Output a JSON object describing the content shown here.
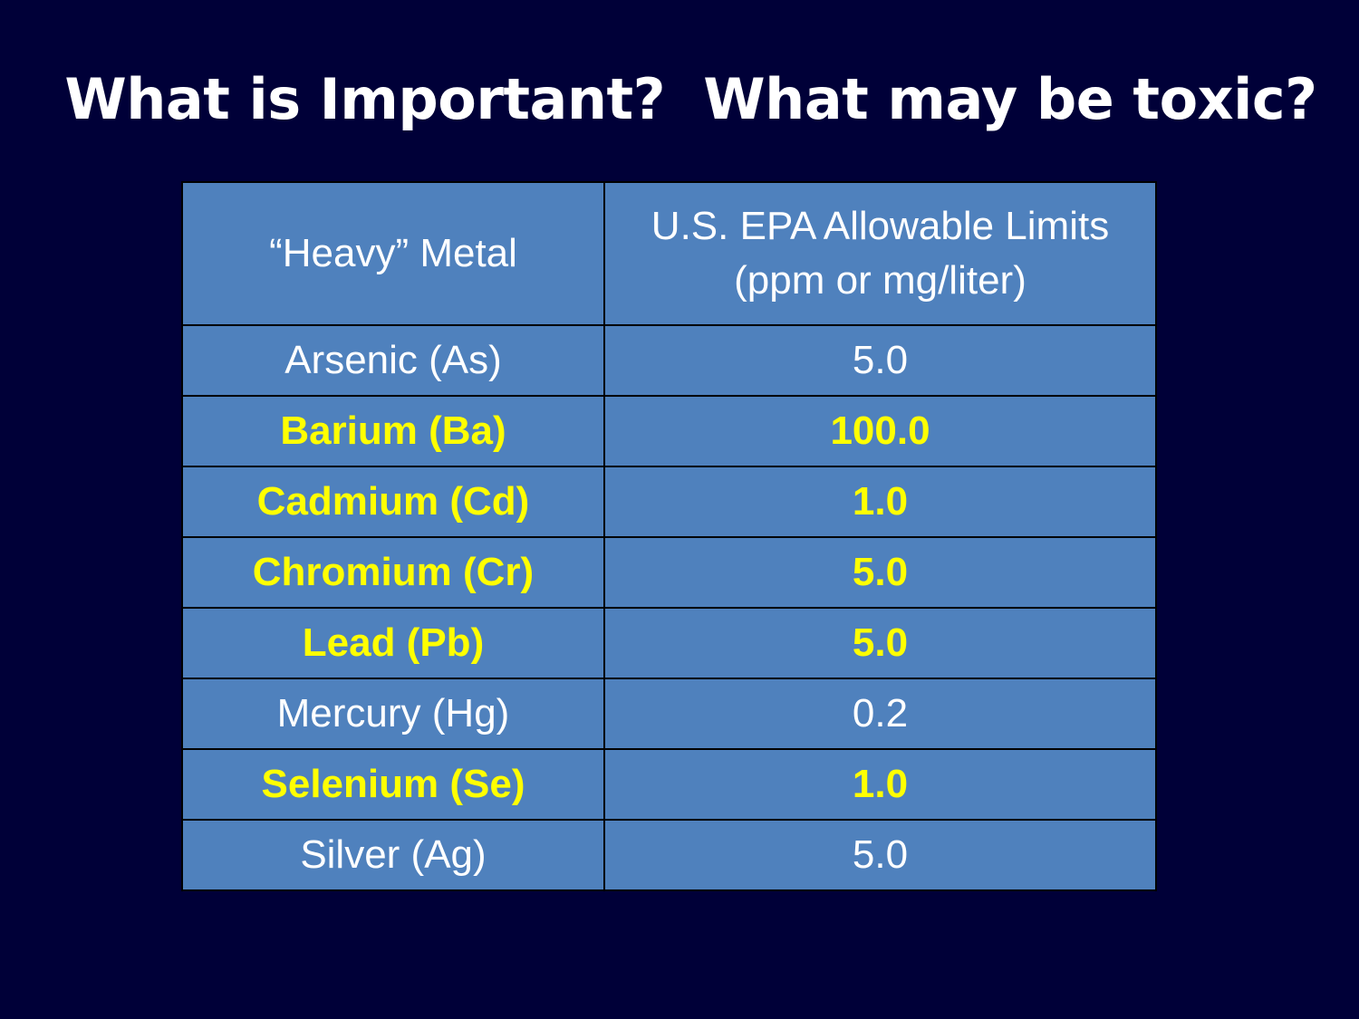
{
  "slide": {
    "title": "What is Important?  What may be toxic?"
  },
  "table": {
    "headers": {
      "metal": "“Heavy” Metal",
      "limit_line1": "U.S. EPA Allowable Limits",
      "limit_line2": "(ppm or mg/liter)"
    },
    "rows": [
      {
        "metal": "Arsenic (As)",
        "limit": "5.0",
        "highlighted": false
      },
      {
        "metal": "Barium (Ba)",
        "limit": "100.0",
        "highlighted": true
      },
      {
        "metal": "Cadmium (Cd)",
        "limit": "1.0",
        "highlighted": true
      },
      {
        "metal": "Chromium (Cr)",
        "limit": "5.0",
        "highlighted": true
      },
      {
        "metal": "Lead (Pb)",
        "limit": "5.0",
        "highlighted": true
      },
      {
        "metal": "Mercury (Hg)",
        "limit": "0.2",
        "highlighted": false
      },
      {
        "metal": "Selenium (Se)",
        "limit": "1.0",
        "highlighted": true
      },
      {
        "metal": "Silver (Ag)",
        "limit": "5.0",
        "highlighted": false
      }
    ]
  },
  "colors": {
    "background": "#000038",
    "cell_fill": "#4f81bd",
    "cell_border": "#000000",
    "text": "#ffffff",
    "highlight_text": "#ffff00"
  }
}
